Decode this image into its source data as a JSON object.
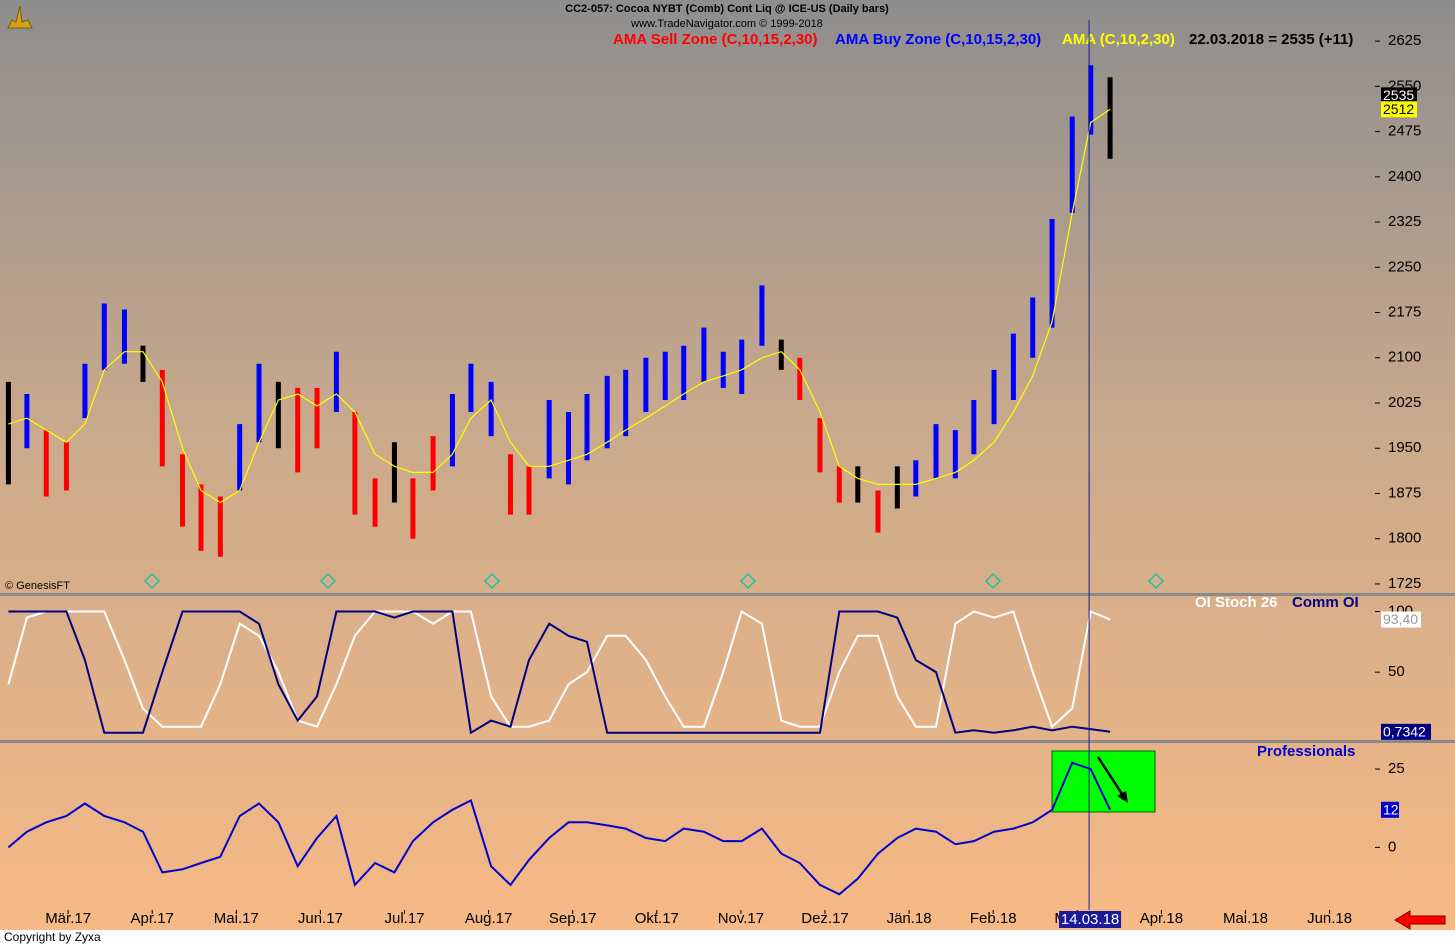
{
  "chart_data": [
    {
      "type": "ohlc",
      "title": "CC2-057:  Cocoa NYBT (Comb) Cont Liq @ ICE-US  (Daily bars)",
      "subtitle": "www.TradeNavigator.com © 1999-2018",
      "annotation": "22.03.2018 = 2535 (+11)",
      "source": "© GenesisFT",
      "legend": [
        {
          "name": "AMA Sell Zone (C,10,15,2,30)",
          "color": "#ff0000"
        },
        {
          "name": "AMA Buy Zone (C,10,15,2,30)",
          "color": "#0000ff"
        }
      ],
      "ylim": [
        1710,
        2660
      ],
      "yticks": [
        1725,
        1800,
        1875,
        1950,
        2025,
        2100,
        2175,
        2250,
        2325,
        2400,
        2475,
        2550,
        2625
      ],
      "x": [
        -0.71,
        -0.49,
        -0.26,
        -0.02,
        0.2,
        0.43,
        0.67,
        0.89,
        1.12,
        1.36,
        1.58,
        1.81,
        2.04,
        2.27,
        2.5,
        2.73,
        2.96,
        3.19,
        3.41,
        3.65,
        3.88,
        4.1,
        4.34,
        4.57,
        4.79,
        5.03,
        5.26,
        5.48,
        5.72,
        5.95,
        6.17,
        6.41,
        6.63,
        6.87,
        7.1,
        7.32,
        7.56,
        7.79,
        8.01,
        8.25,
        8.48,
        8.7,
        8.94,
        9.17,
        9.39,
        9.63,
        9.86,
        10.08,
        10.32,
        10.55,
        10.77,
        11.01,
        11.24,
        11.47,
        11.7,
        11.94,
        12.16,
        12.39
      ],
      "bars": {
        "high": [
          2060,
          2040,
          1980,
          1960,
          2090,
          2190,
          2180,
          2120,
          2080,
          1940,
          1890,
          1870,
          1990,
          2090,
          2060,
          2050,
          2050,
          2110,
          2010,
          1900,
          1960,
          1900,
          1970,
          2040,
          2090,
          2060,
          1940,
          1920,
          2030,
          2010,
          2040,
          2070,
          2080,
          2100,
          2110,
          2120,
          2150,
          2110,
          2130,
          2220,
          2130,
          2100,
          2000,
          1920,
          1920,
          1880,
          1920,
          1930,
          1990,
          1980,
          2030,
          2080,
          2140,
          2200,
          2330,
          2500,
          2585,
          2565
        ],
        "low": [
          1890,
          1950,
          1870,
          1880,
          2000,
          2080,
          2090,
          2060,
          1920,
          1820,
          1780,
          1770,
          1880,
          1960,
          1950,
          1910,
          1950,
          2010,
          1840,
          1820,
          1860,
          1800,
          1880,
          1920,
          2010,
          1970,
          1840,
          1840,
          1900,
          1890,
          1930,
          1950,
          1970,
          2010,
          2030,
          2030,
          2060,
          2050,
          2040,
          2120,
          2080,
          2030,
          1910,
          1860,
          1860,
          1810,
          1850,
          1870,
          1900,
          1900,
          1940,
          1990,
          2030,
          2100,
          2150,
          2340,
          2470,
          2430
        ],
        "color": [
          "#000000",
          "#0000ff",
          "#ff0000",
          "#ff0000",
          "#0000ff",
          "#0000ff",
          "#0000ff",
          "#000000",
          "#ff0000",
          "#ff0000",
          "#ff0000",
          "#ff0000",
          "#0000ff",
          "#0000ff",
          "#000000",
          "#ff0000",
          "#ff0000",
          "#0000ff",
          "#ff0000",
          "#ff0000",
          "#000000",
          "#ff0000",
          "#ff0000",
          "#0000ff",
          "#0000ff",
          "#0000ff",
          "#ff0000",
          "#ff0000",
          "#0000ff",
          "#0000ff",
          "#0000ff",
          "#0000ff",
          "#0000ff",
          "#0000ff",
          "#0000ff",
          "#0000ff",
          "#0000ff",
          "#0000ff",
          "#0000ff",
          "#0000ff",
          "#000000",
          "#ff0000",
          "#ff0000",
          "#ff0000",
          "#000000",
          "#ff0000",
          "#000000",
          "#0000ff",
          "#0000ff",
          "#0000ff",
          "#0000ff",
          "#0000ff",
          "#0000ff",
          "#0000ff",
          "#0000ff",
          "#0000ff",
          "#0000ff",
          "#000000"
        ]
      },
      "last_close": 2535,
      "series": [
        {
          "name": "AMA (C,10,2,30)",
          "color": "#ffff00",
          "values": [
            1990,
            2000,
            1980,
            1960,
            1990,
            2080,
            2110,
            2110,
            2060,
            1950,
            1880,
            1860,
            1880,
            1960,
            2030,
            2040,
            2020,
            2040,
            2010,
            1940,
            1920,
            1910,
            1910,
            1940,
            2000,
            2030,
            1960,
            1920,
            1920,
            1930,
            1940,
            1960,
            1980,
            2000,
            2020,
            2040,
            2060,
            2070,
            2080,
            2100,
            2110,
            2080,
            2010,
            1920,
            1900,
            1890,
            1890,
            1890,
            1900,
            1910,
            1930,
            1960,
            2010,
            2070,
            2160,
            2340,
            2490,
            2512
          ]
        }
      ]
    },
    {
      "type": "line",
      "ylim": [
        -6,
        112
      ],
      "yticks": [
        50,
        100
      ],
      "series": [
        {
          "name": "OI Stoch 26",
          "color": "#ffffff",
          "last_value_label": "93,40",
          "values": [
            40,
            95,
            100,
            100,
            100,
            100,
            60,
            20,
            5,
            5,
            5,
            40,
            90,
            80,
            50,
            10,
            5,
            40,
            80,
            100,
            100,
            100,
            90,
            100,
            100,
            30,
            5,
            5,
            10,
            40,
            50,
            80,
            80,
            60,
            30,
            5,
            5,
            50,
            100,
            90,
            10,
            5,
            5,
            50,
            80,
            80,
            30,
            5,
            5,
            90,
            100,
            95,
            100,
            50,
            5,
            20,
            100,
            93.4
          ]
        },
        {
          "name": "Comm OI",
          "color": "#000080",
          "last_value_label": "0,7342",
          "values": [
            100,
            100,
            100,
            100,
            60,
            0,
            0,
            0,
            50,
            100,
            100,
            100,
            100,
            90,
            40,
            10,
            30,
            100,
            100,
            100,
            95,
            100,
            100,
            100,
            0,
            10,
            5,
            60,
            90,
            80,
            75,
            0,
            0,
            0,
            0,
            0,
            0,
            0,
            0,
            0,
            0,
            0,
            0,
            100,
            100,
            100,
            95,
            60,
            50,
            0,
            2,
            0,
            2,
            5,
            2,
            5,
            3,
            0.7342
          ]
        }
      ]
    },
    {
      "type": "line",
      "ylim": [
        -20,
        33
      ],
      "yticks": [
        0,
        25
      ],
      "xlim": [
        -0.81,
        15.54
      ],
      "xticks": [
        {
          "value": 0,
          "label": "Mär.17"
        },
        {
          "value": 1,
          "label": "Apr.17"
        },
        {
          "value": 2,
          "label": "Mai.17"
        },
        {
          "value": 3,
          "label": "Jun.17"
        },
        {
          "value": 4,
          "label": "Jul.17"
        },
        {
          "value": 5,
          "label": "Aug.17"
        },
        {
          "value": 6,
          "label": "Sep.17"
        },
        {
          "value": 7,
          "label": "Okt.17"
        },
        {
          "value": 8,
          "label": "Nov.17"
        },
        {
          "value": 9,
          "label": "Dez.17"
        },
        {
          "value": 10,
          "label": "Jän.18"
        },
        {
          "value": 11,
          "label": "Feb.18"
        },
        {
          "value": 12,
          "label": "Mär.18"
        },
        {
          "value": 13,
          "label": "Apr.18"
        },
        {
          "value": 14,
          "label": "Mai.18"
        },
        {
          "value": 15,
          "label": "Jun.18"
        }
      ],
      "cursor": {
        "x": 12.14,
        "label": "14.03.18"
      },
      "copyright": "Copyright by Zyxa",
      "series": [
        {
          "name": "Professionals",
          "color": "#0000cc",
          "values": [
            0,
            5,
            8,
            10,
            14,
            10,
            8,
            5,
            -8,
            -7,
            -5,
            -3,
            10,
            14,
            8,
            -6,
            3,
            10,
            -12,
            -5,
            -8,
            2,
            8,
            12,
            15,
            -6,
            -12,
            -4,
            3,
            8,
            8,
            7,
            6,
            3,
            2,
            6,
            5,
            2,
            2,
            6,
            -2,
            -5,
            -12,
            -15,
            -10,
            -2,
            3,
            6,
            5,
            1,
            2,
            5,
            6,
            8,
            12,
            27,
            25,
            12
          ]
        }
      ]
    }
  ]
}
